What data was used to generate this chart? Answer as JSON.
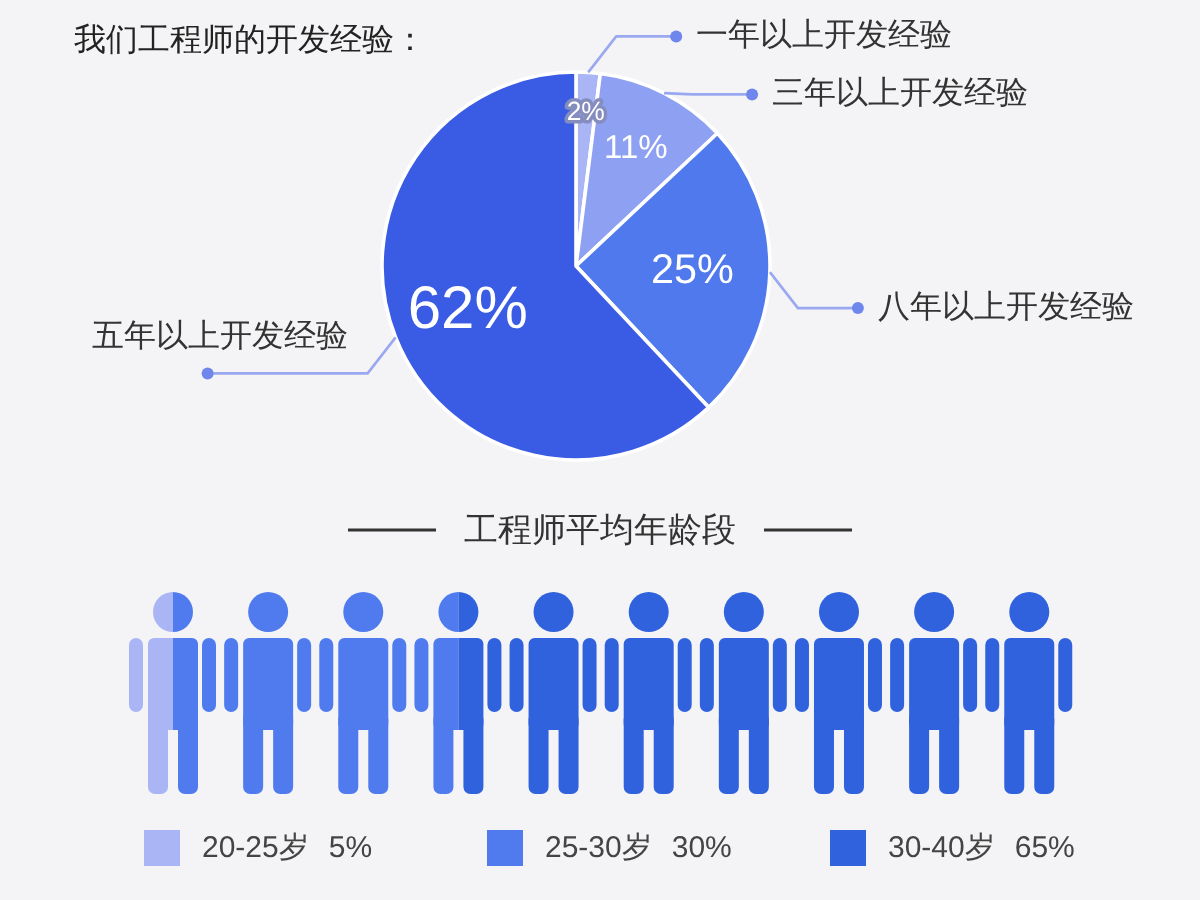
{
  "chart_data": [
    {
      "type": "pie",
      "title": "我们工程师的开发经验：",
      "categories": [
        "一年以上开发经验",
        "三年以上开发经验",
        "八年以上开发经验",
        "五年以上开发经验"
      ],
      "values": [
        2,
        11,
        25,
        62
      ],
      "colors": [
        "#aab5f5",
        "#8ea0f2",
        "#4f79ec",
        "#3a5be4"
      ],
      "value_labels": [
        "2%",
        "11%",
        "25%",
        "62%"
      ]
    },
    {
      "type": "other",
      "title": "工程师平均年龄段",
      "categories": [
        "20-25岁",
        "25-30岁",
        "30-40岁"
      ],
      "values": [
        5,
        30,
        65
      ],
      "colors": [
        "#aab5f5",
        "#4f7bee",
        "#2f62dc"
      ],
      "value_labels": [
        "5%",
        "30%",
        "65%"
      ]
    }
  ]
}
